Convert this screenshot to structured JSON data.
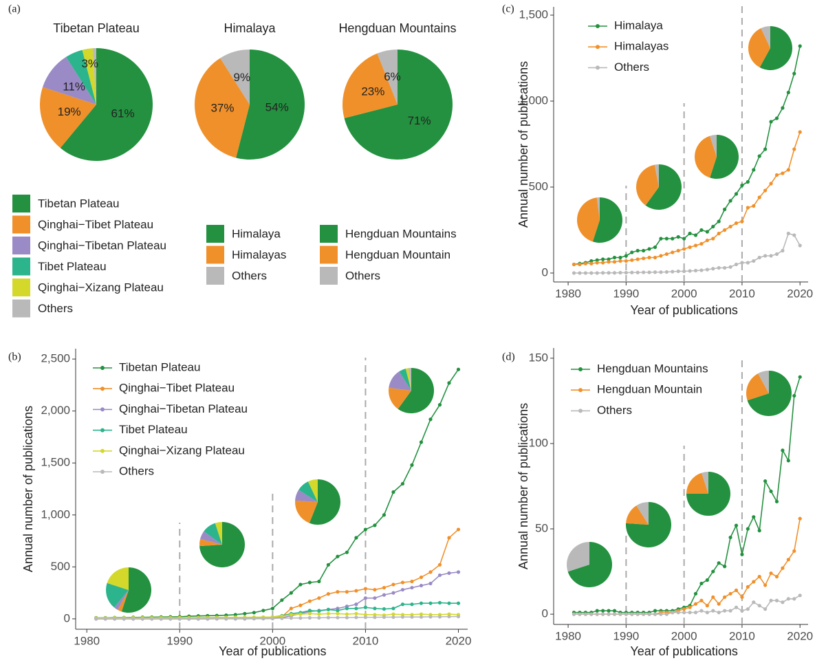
{
  "chart_data": [
    {
      "type": "pie",
      "panel": "(a)",
      "title": "Tibetan Plateau",
      "categories": [
        "Tibetan Plateau",
        "Qinghai−Tibet Plateau",
        "Qinghai−Tibetan Plateau",
        "Tibet Plateau",
        "Qinghai−Xizang Plateau",
        "Others"
      ],
      "values": [
        61,
        19,
        11,
        5,
        3,
        1
      ],
      "value_labels": [
        "61%",
        "19%",
        "11%",
        null,
        "3%",
        null
      ],
      "colors": [
        "#23913f",
        "#f0902a",
        "#9a8bc6",
        "#2cb48c",
        "#d3d82b",
        "#b9b9b9"
      ]
    },
    {
      "type": "pie",
      "title": "Himalaya",
      "categories": [
        "Himalaya",
        "Himalayas",
        "Others"
      ],
      "values": [
        54,
        37,
        9
      ],
      "value_labels": [
        "54%",
        "37%",
        "9%"
      ],
      "colors": [
        "#23913f",
        "#f0902a",
        "#b9b9b9"
      ]
    },
    {
      "type": "pie",
      "title": "Hengduan Mountains",
      "categories": [
        "Hengduan Mountains",
        "Hengduan Mountain",
        "Others"
      ],
      "values": [
        71,
        23,
        6
      ],
      "value_labels": [
        "71%",
        "23%",
        "6%"
      ],
      "colors": [
        "#23913f",
        "#f0902a",
        "#b9b9b9"
      ]
    },
    {
      "type": "line",
      "panel": "(b)",
      "x_label": "Year of publications",
      "y_label": "Annual number of publications",
      "x": [
        1981,
        1982,
        1983,
        1984,
        1985,
        1986,
        1987,
        1988,
        1989,
        1990,
        1991,
        1992,
        1993,
        1994,
        1995,
        1996,
        1997,
        1998,
        1999,
        2000,
        2001,
        2002,
        2003,
        2004,
        2005,
        2006,
        2007,
        2008,
        2009,
        2010,
        2011,
        2012,
        2013,
        2014,
        2015,
        2016,
        2017,
        2018,
        2019,
        2020
      ],
      "xlim": [
        1978.8,
        2021
      ],
      "xticks": [
        1980,
        1990,
        2000,
        2010,
        2020
      ],
      "ylim": [
        -100,
        2600
      ],
      "yticks": [
        0,
        500,
        {
          "value": 1000,
          "label": "1,000"
        },
        {
          "value": 1500,
          "label": "1,500"
        },
        {
          "value": 2000,
          "label": "2,000"
        },
        {
          "value": 2500,
          "label": "2,500"
        }
      ],
      "vlines": [
        1990,
        2000,
        2010
      ],
      "series": [
        {
          "name": "Tibetan Plateau",
          "color": "#23913f",
          "values": [
            10,
            10,
            12,
            12,
            14,
            15,
            16,
            18,
            19,
            20,
            25,
            28,
            30,
            32,
            35,
            40,
            50,
            60,
            80,
            100,
            180,
            250,
            330,
            350,
            360,
            520,
            600,
            640,
            780,
            860,
            900,
            1000,
            1220,
            1300,
            1480,
            1700,
            1920,
            2060,
            2270,
            2400
          ]
        },
        {
          "name": "Qinghai−Tibet Plateau",
          "color": "#f0902a",
          "values": [
            2,
            2,
            2,
            3,
            3,
            3,
            3,
            4,
            4,
            4,
            5,
            5,
            5,
            6,
            6,
            7,
            8,
            8,
            9,
            10,
            20,
            100,
            130,
            170,
            200,
            240,
            260,
            260,
            270,
            290,
            280,
            300,
            330,
            350,
            360,
            400,
            450,
            520,
            780,
            860
          ]
        },
        {
          "name": "Qinghai−Tibetan Plateau",
          "color": "#9a8bc6",
          "values": [
            0,
            0,
            0,
            0,
            0,
            0,
            0,
            0,
            0,
            0,
            0,
            0,
            0,
            1,
            1,
            1,
            1,
            2,
            2,
            3,
            10,
            30,
            50,
            70,
            80,
            90,
            100,
            120,
            140,
            200,
            200,
            230,
            250,
            280,
            300,
            320,
            340,
            420,
            440,
            450
          ]
        },
        {
          "name": "Tibet Plateau",
          "color": "#2cb48c",
          "values": [
            5,
            5,
            6,
            6,
            6,
            7,
            7,
            8,
            8,
            8,
            9,
            9,
            10,
            10,
            10,
            12,
            12,
            14,
            15,
            18,
            30,
            50,
            60,
            80,
            75,
            90,
            80,
            100,
            100,
            110,
            100,
            95,
            100,
            140,
            140,
            150,
            150,
            155,
            150,
            150
          ]
        },
        {
          "name": "Qinghai−Xizang Plateau",
          "color": "#d3d82b",
          "values": [
            8,
            8,
            9,
            9,
            10,
            10,
            10,
            11,
            11,
            12,
            12,
            13,
            13,
            14,
            14,
            15,
            15,
            16,
            16,
            18,
            25,
            40,
            45,
            50,
            45,
            50,
            50,
            45,
            50,
            40,
            40,
            35,
            45,
            40,
            40,
            45,
            40,
            40,
            45,
            40
          ]
        },
        {
          "name": "Others",
          "color": "#b9b9b9",
          "values": [
            2,
            2,
            2,
            2,
            2,
            2,
            2,
            2,
            2,
            2,
            3,
            3,
            3,
            3,
            3,
            4,
            4,
            4,
            4,
            5,
            6,
            8,
            8,
            10,
            10,
            12,
            12,
            12,
            14,
            15,
            15,
            16,
            16,
            18,
            18,
            18,
            20,
            20,
            22,
            22
          ]
        }
      ],
      "insets": [
        [
          55,
          3,
          3,
          19,
          20,
          0
        ],
        [
          74,
          5,
          6,
          10,
          5,
          0
        ],
        [
          56,
          20,
          8,
          9,
          7,
          0
        ],
        [
          60,
          17,
          14,
          5,
          2,
          2
        ]
      ]
    },
    {
      "type": "line",
      "panel": "(c)",
      "x_label": "Year of publications",
      "y_label": "Annual number of publications",
      "x": [
        1981,
        1982,
        1983,
        1984,
        1985,
        1986,
        1987,
        1988,
        1989,
        1990,
        1991,
        1992,
        1993,
        1994,
        1995,
        1996,
        1997,
        1998,
        1999,
        2000,
        2001,
        2002,
        2003,
        2004,
        2005,
        2006,
        2007,
        2008,
        2009,
        2010,
        2011,
        2012,
        2013,
        2014,
        2015,
        2016,
        2017,
        2018,
        2019,
        2020
      ],
      "xlim": [
        1977.5,
        2021.4
      ],
      "xticks": [
        1980,
        1990,
        2000,
        2010,
        2020
      ],
      "ylim": [
        -52,
        1548
      ],
      "yticks": [
        0,
        500,
        {
          "value": 1000,
          "label": "1,000"
        },
        {
          "value": 1500,
          "label": "1,500"
        }
      ],
      "vlines": [
        1990,
        2000,
        2010
      ],
      "series": [
        {
          "name": "Himalaya",
          "color": "#23913f",
          "values": [
            50,
            55,
            60,
            70,
            75,
            80,
            80,
            90,
            90,
            100,
            120,
            130,
            130,
            140,
            150,
            200,
            200,
            200,
            210,
            200,
            230,
            220,
            250,
            240,
            270,
            300,
            370,
            420,
            460,
            510,
            530,
            600,
            680,
            720,
            880,
            900,
            960,
            1050,
            1160,
            1320
          ]
        },
        {
          "name": "Himalayas",
          "color": "#f0902a",
          "values": [
            50,
            50,
            55,
            55,
            60,
            60,
            65,
            65,
            70,
            70,
            75,
            80,
            85,
            90,
            90,
            100,
            110,
            120,
            130,
            140,
            150,
            160,
            170,
            190,
            200,
            230,
            250,
            270,
            290,
            300,
            380,
            390,
            440,
            480,
            520,
            570,
            580,
            600,
            720,
            820
          ]
        },
        {
          "name": "Others",
          "color": "#b9b9b9",
          "values": [
            0,
            0,
            0,
            0,
            0,
            1,
            1,
            1,
            2,
            2,
            3,
            3,
            4,
            4,
            5,
            5,
            6,
            8,
            10,
            10,
            12,
            14,
            16,
            20,
            25,
            30,
            30,
            35,
            50,
            60,
            60,
            70,
            90,
            100,
            100,
            110,
            130,
            230,
            220,
            160
          ]
        }
      ],
      "insets": [
        [
          55,
          43,
          2
        ],
        [
          60,
          37,
          3
        ],
        [
          55,
          40,
          5
        ],
        [
          58,
          35,
          7
        ]
      ]
    },
    {
      "type": "line",
      "panel": "(d)",
      "x_label": "Year of publications",
      "y_label": "Annual number of publications",
      "x": [
        1981,
        1982,
        1983,
        1984,
        1985,
        1986,
        1987,
        1988,
        1989,
        1990,
        1991,
        1992,
        1993,
        1994,
        1995,
        1996,
        1997,
        1998,
        1999,
        2000,
        2001,
        2002,
        2003,
        2004,
        2005,
        2006,
        2007,
        2008,
        2009,
        2010,
        2011,
        2012,
        2013,
        2014,
        2015,
        2016,
        2017,
        2018,
        2019,
        2020
      ],
      "xlim": [
        1977.5,
        2021.4
      ],
      "xticks": [
        1980,
        1990,
        2000,
        2010,
        2020
      ],
      "ylim": [
        -6,
        156
      ],
      "yticks": [
        0,
        50,
        100,
        150
      ],
      "vlines": [
        1990,
        2000,
        2010
      ],
      "series": [
        {
          "name": "Hengduan Mountains",
          "color": "#23913f",
          "values": [
            1,
            1,
            1,
            1,
            2,
            2,
            2,
            2,
            1,
            1,
            1,
            1,
            1,
            1,
            2,
            2,
            2,
            2,
            3,
            4,
            5,
            12,
            18,
            20,
            25,
            30,
            28,
            45,
            52,
            35,
            50,
            57,
            49,
            78,
            72,
            66,
            96,
            90,
            128,
            139
          ]
        },
        {
          "name": "Hengduan Mountain",
          "color": "#f0902a",
          "values": [
            0,
            0,
            0,
            0,
            0,
            0,
            0,
            0,
            0,
            0,
            0,
            0,
            0,
            0,
            0,
            1,
            1,
            1,
            2,
            3,
            4,
            6,
            8,
            5,
            10,
            6,
            10,
            12,
            14,
            10,
            16,
            19,
            22,
            17,
            24,
            22,
            27,
            32,
            37,
            56
          ]
        },
        {
          "name": "Others",
          "color": "#b9b9b9",
          "values": [
            0,
            0,
            0,
            0,
            0,
            0,
            0,
            0,
            0,
            0,
            0,
            0,
            0,
            0,
            0,
            0,
            0,
            1,
            1,
            1,
            1,
            1,
            2,
            1,
            2,
            1,
            2,
            2,
            4,
            2,
            3,
            7,
            5,
            3,
            8,
            8,
            7,
            9,
            9,
            11
          ]
        }
      ],
      "insets": [
        [
          70,
          0,
          30
        ],
        [
          76,
          15,
          9
        ],
        [
          75,
          20,
          5
        ],
        [
          70,
          22,
          8
        ]
      ]
    }
  ]
}
